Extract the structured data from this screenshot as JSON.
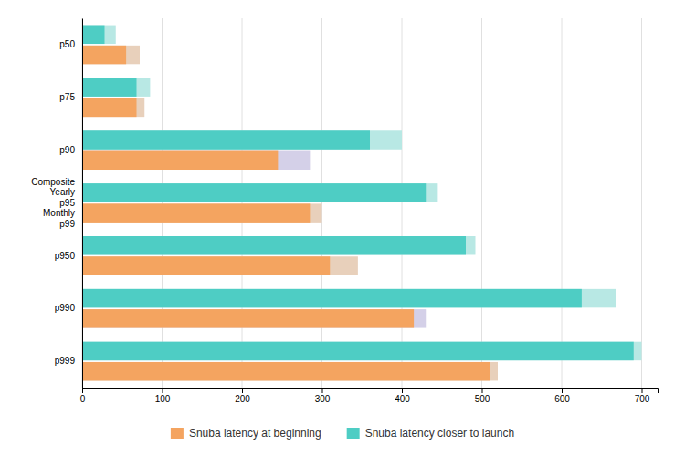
{
  "chart_data": {
    "type": "bar",
    "orientation": "horizontal",
    "categories": [
      "p50",
      "p75",
      "p90",
      "Composite\nYearly\np95\nMonthly\np99",
      "p950",
      "p990",
      "p999"
    ],
    "series": [
      {
        "name": "Snuba latency at beginning",
        "color": "#F4A460",
        "values": [
          55,
          68,
          245,
          285,
          310,
          415,
          510
        ]
      },
      {
        "colors": [
          "#e8d0bb",
          "#e8d0bb",
          "#d4d0e8",
          "#e8d0bb",
          "#e8d0bb",
          "#d4d0e8",
          "#e8d0bb"
        ],
        "values": [
          72,
          78,
          285,
          300,
          345,
          430,
          520
        ]
      },
      {
        "name": "Snuba latency closer to launch",
        "color": "#4ECDC4",
        "values": [
          28,
          68,
          360,
          430,
          480,
          625,
          690
        ]
      },
      {
        "color": "#b8e8e4",
        "values": [
          42,
          85,
          400,
          445,
          492,
          668,
          700
        ]
      }
    ],
    "xlim": [
      0,
      720
    ],
    "xticks": [
      0,
      100,
      200,
      300,
      400,
      500,
      600,
      700
    ],
    "grid": true,
    "legend": "bottom"
  }
}
